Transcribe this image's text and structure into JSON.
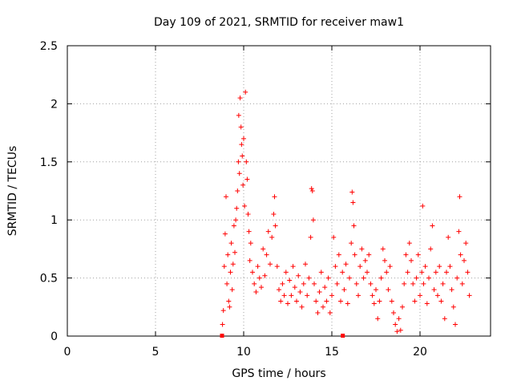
{
  "chart_data": {
    "type": "scatter",
    "title": "Day 109 of 2021, SRMTID for receiver maw1",
    "xlabel": "GPS time / hours",
    "ylabel": "SRMTID / TECUs",
    "xlim": [
      0,
      24
    ],
    "ylim": [
      0,
      2.5
    ],
    "x_ticks": [
      0,
      5,
      10,
      15,
      20
    ],
    "x_tick_labels": [
      "0",
      "5",
      "10",
      "15",
      "20"
    ],
    "y_ticks": [
      0,
      0.5,
      1,
      1.5,
      2,
      2.5
    ],
    "y_tick_labels": [
      "0",
      "0.5",
      "1",
      "1.5",
      "2",
      "2.5"
    ],
    "grid": true,
    "marker": "+",
    "series": [
      {
        "name": "SRMTID",
        "color": "#ff0000",
        "points": [
          [
            8.8,
            0.1
          ],
          [
            8.85,
            0.22
          ],
          [
            8.9,
            0.6
          ],
          [
            8.95,
            0.88
          ],
          [
            9.0,
            1.2
          ],
          [
            9.05,
            0.45
          ],
          [
            9.1,
            0.7
          ],
          [
            9.15,
            0.3
          ],
          [
            9.2,
            0.25
          ],
          [
            9.25,
            0.55
          ],
          [
            9.3,
            0.8
          ],
          [
            9.35,
            0.4
          ],
          [
            9.4,
            0.62
          ],
          [
            9.45,
            0.95
          ],
          [
            9.5,
            0.72
          ],
          [
            9.55,
            1.0
          ],
          [
            9.6,
            1.1
          ],
          [
            9.65,
            1.25
          ],
          [
            9.7,
            1.5
          ],
          [
            9.72,
            1.9
          ],
          [
            9.76,
            1.4
          ],
          [
            9.8,
            2.05
          ],
          [
            9.85,
            1.8
          ],
          [
            9.88,
            1.65
          ],
          [
            9.92,
            1.55
          ],
          [
            9.96,
            1.3
          ],
          [
            10.0,
            1.7
          ],
          [
            10.05,
            1.12
          ],
          [
            10.1,
            2.1
          ],
          [
            10.15,
            1.5
          ],
          [
            10.2,
            1.35
          ],
          [
            10.25,
            1.05
          ],
          [
            10.3,
            0.9
          ],
          [
            10.35,
            0.65
          ],
          [
            10.4,
            0.8
          ],
          [
            10.5,
            0.55
          ],
          [
            10.6,
            0.45
          ],
          [
            10.7,
            0.38
          ],
          [
            10.8,
            0.6
          ],
          [
            10.9,
            0.5
          ],
          [
            11.0,
            0.42
          ],
          [
            11.1,
            0.75
          ],
          [
            11.2,
            0.52
          ],
          [
            11.3,
            0.7
          ],
          [
            11.4,
            0.9
          ],
          [
            11.5,
            0.62
          ],
          [
            11.6,
            0.85
          ],
          [
            11.7,
            1.05
          ],
          [
            11.75,
            1.2
          ],
          [
            11.8,
            0.95
          ],
          [
            11.9,
            0.6
          ],
          [
            12.0,
            0.4
          ],
          [
            12.1,
            0.3
          ],
          [
            12.2,
            0.45
          ],
          [
            12.3,
            0.35
          ],
          [
            12.4,
            0.55
          ],
          [
            12.5,
            0.28
          ],
          [
            12.6,
            0.48
          ],
          [
            12.7,
            0.35
          ],
          [
            12.8,
            0.6
          ],
          [
            12.9,
            0.42
          ],
          [
            13.0,
            0.3
          ],
          [
            13.1,
            0.52
          ],
          [
            13.2,
            0.38
          ],
          [
            13.3,
            0.25
          ],
          [
            13.4,
            0.45
          ],
          [
            13.5,
            0.62
          ],
          [
            13.6,
            0.35
          ],
          [
            13.7,
            0.5
          ],
          [
            13.8,
            0.85
          ],
          [
            13.85,
            1.27
          ],
          [
            13.9,
            1.25
          ],
          [
            13.95,
            1.0
          ],
          [
            14.0,
            0.45
          ],
          [
            14.1,
            0.3
          ],
          [
            14.2,
            0.2
          ],
          [
            14.3,
            0.38
          ],
          [
            14.4,
            0.55
          ],
          [
            14.5,
            0.25
          ],
          [
            14.6,
            0.42
          ],
          [
            14.7,
            0.3
          ],
          [
            14.8,
            0.5
          ],
          [
            14.9,
            0.2
          ],
          [
            15.0,
            0.35
          ],
          [
            15.1,
            0.85
          ],
          [
            15.2,
            0.6
          ],
          [
            15.3,
            0.45
          ],
          [
            15.4,
            0.7
          ],
          [
            15.5,
            0.3
          ],
          [
            15.6,
            0.55
          ],
          [
            15.7,
            0.4
          ],
          [
            15.8,
            0.62
          ],
          [
            15.9,
            0.28
          ],
          [
            16.0,
            0.5
          ],
          [
            16.1,
            0.8
          ],
          [
            16.15,
            1.24
          ],
          [
            16.2,
            1.15
          ],
          [
            16.25,
            0.95
          ],
          [
            16.3,
            0.7
          ],
          [
            16.4,
            0.45
          ],
          [
            16.5,
            0.35
          ],
          [
            16.6,
            0.6
          ],
          [
            16.7,
            0.75
          ],
          [
            16.8,
            0.5
          ],
          [
            16.9,
            0.65
          ],
          [
            17.0,
            0.55
          ],
          [
            17.1,
            0.7
          ],
          [
            17.2,
            0.45
          ],
          [
            17.3,
            0.35
          ],
          [
            17.4,
            0.28
          ],
          [
            17.5,
            0.4
          ],
          [
            17.6,
            0.15
          ],
          [
            17.7,
            0.3
          ],
          [
            17.8,
            0.5
          ],
          [
            17.9,
            0.75
          ],
          [
            18.0,
            0.65
          ],
          [
            18.1,
            0.55
          ],
          [
            18.2,
            0.4
          ],
          [
            18.3,
            0.6
          ],
          [
            18.4,
            0.3
          ],
          [
            18.5,
            0.2
          ],
          [
            18.6,
            0.1
          ],
          [
            18.7,
            0.04
          ],
          [
            18.8,
            0.15
          ],
          [
            18.9,
            0.05
          ],
          [
            19.0,
            0.25
          ],
          [
            19.1,
            0.45
          ],
          [
            19.2,
            0.7
          ],
          [
            19.3,
            0.55
          ],
          [
            19.4,
            0.8
          ],
          [
            19.5,
            0.65
          ],
          [
            19.6,
            0.45
          ],
          [
            19.7,
            0.3
          ],
          [
            19.8,
            0.5
          ],
          [
            19.9,
            0.7
          ],
          [
            20.0,
            0.35
          ],
          [
            20.1,
            0.55
          ],
          [
            20.15,
            1.12
          ],
          [
            20.2,
            0.45
          ],
          [
            20.3,
            0.6
          ],
          [
            20.4,
            0.28
          ],
          [
            20.5,
            0.5
          ],
          [
            20.6,
            0.75
          ],
          [
            20.7,
            0.95
          ],
          [
            20.8,
            0.4
          ],
          [
            20.9,
            0.55
          ],
          [
            21.0,
            0.35
          ],
          [
            21.1,
            0.6
          ],
          [
            21.2,
            0.3
          ],
          [
            21.3,
            0.45
          ],
          [
            21.4,
            0.15
          ],
          [
            21.5,
            0.55
          ],
          [
            21.6,
            0.85
          ],
          [
            21.7,
            0.6
          ],
          [
            21.8,
            0.4
          ],
          [
            21.9,
            0.25
          ],
          [
            22.0,
            0.1
          ],
          [
            22.1,
            0.5
          ],
          [
            22.2,
            0.9
          ],
          [
            22.25,
            1.2
          ],
          [
            22.3,
            0.7
          ],
          [
            22.4,
            0.45
          ],
          [
            22.5,
            0.65
          ],
          [
            22.6,
            0.8
          ],
          [
            22.7,
            0.55
          ],
          [
            22.8,
            0.35
          ]
        ]
      }
    ],
    "zero_markers": [
      8.75,
      15.6
    ]
  }
}
